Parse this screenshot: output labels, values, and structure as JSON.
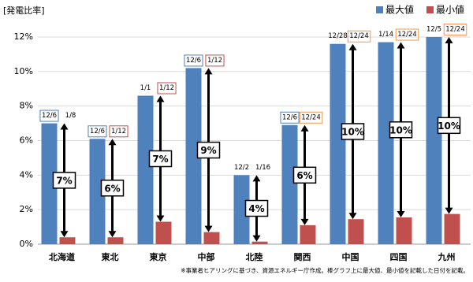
{
  "chart_data": {
    "type": "bar",
    "y_axis_title": "[発電比率]",
    "footnote": "※事業者ヒアリングに基づき、資源エネルギー庁作成。棒グラフ上に最大値、最小値を記載した日付を記載。",
    "categories": [
      "北海道",
      "東北",
      "東京",
      "中部",
      "北陸",
      "関西",
      "中国",
      "四国",
      "九州"
    ],
    "series": [
      {
        "name": "最大値",
        "color": "#4f81bd",
        "values": [
          7.0,
          6.1,
          8.6,
          10.2,
          4.0,
          6.9,
          11.6,
          11.7,
          12.0
        ],
        "dates": [
          "12/6",
          "12/6",
          "1/1",
          "12/6",
          "12/2",
          "12/6",
          "12/28",
          "1/14",
          "12/5"
        ],
        "date_boxes": [
          "#4f81bd",
          "#4f81bd",
          null,
          "#4f81bd",
          null,
          "#4f81bd",
          null,
          null,
          null
        ]
      },
      {
        "name": "最小値",
        "color": "#c0504d",
        "values": [
          0.4,
          0.4,
          1.3,
          0.7,
          0.15,
          1.1,
          1.45,
          1.55,
          1.75
        ],
        "dates": [
          "1/8",
          "1/12",
          "1/12",
          "1/12",
          "1/16",
          "12/24",
          "12/24",
          "12/24",
          "12/24"
        ],
        "date_boxes": [
          null,
          "#c0504d",
          "#c0504d",
          "#c0504d",
          null,
          "#f79646",
          "#f79646",
          "#f79646",
          "#f79646"
        ]
      }
    ],
    "differences": [
      7,
      6,
      7,
      9,
      4,
      6,
      10,
      10,
      10
    ],
    "difference_labels": [
      "7%",
      "6%",
      "7%",
      "9%",
      "4%",
      "6%",
      "10%",
      "10%",
      "10%"
    ],
    "ylim": [
      0,
      12.5
    ],
    "yticks": [
      {
        "value": 0,
        "label": "0%"
      },
      {
        "value": 2,
        "label": "2%"
      },
      {
        "value": 4,
        "label": "4%"
      },
      {
        "value": 6,
        "label": "6%"
      },
      {
        "value": 8,
        "label": "8%"
      },
      {
        "value": 10,
        "label": "10%"
      },
      {
        "value": 12,
        "label": "12%"
      }
    ],
    "grid": true,
    "legend": "top-right"
  }
}
